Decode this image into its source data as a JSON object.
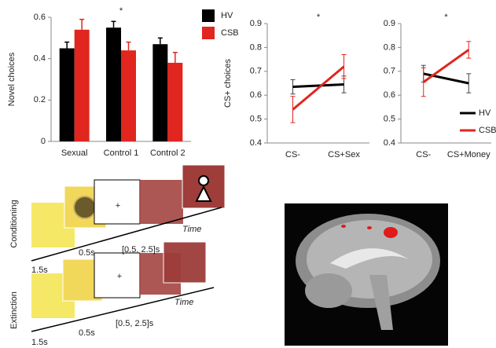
{
  "chart_data": [
    {
      "type": "bar",
      "ylabel": "Novel choices",
      "annotation": "*",
      "categories": [
        "Sexual",
        "Control 1",
        "Control 2"
      ],
      "series": [
        {
          "name": "HV",
          "color": "#000000",
          "values": [
            0.45,
            0.55,
            0.47
          ],
          "errors": [
            0.03,
            0.03,
            0.03
          ]
        },
        {
          "name": "CSB",
          "color": "#e0261e",
          "values": [
            0.54,
            0.44,
            0.38
          ],
          "errors": [
            0.05,
            0.04,
            0.05
          ]
        }
      ],
      "ylim": [
        0,
        0.6
      ],
      "yticks": [
        0,
        0.2,
        0.4,
        0.6
      ],
      "legend": "right"
    },
    {
      "type": "line",
      "ylabel": "CS+ choices",
      "annotation": "*",
      "categories": [
        "CS-",
        "CS+Sex"
      ],
      "series": [
        {
          "color": "#000000",
          "values": [
            0.635,
            0.645
          ],
          "errors": [
            0.03,
            0.035
          ]
        },
        {
          "color": "#e0261e",
          "values": [
            0.54,
            0.72
          ],
          "errors": [
            0.055,
            0.05
          ]
        }
      ],
      "ylim": [
        0.4,
        0.9
      ],
      "yticks": [
        0.4,
        0.5,
        0.6,
        0.7,
        0.8,
        0.9
      ]
    },
    {
      "type": "line",
      "annotation": "*",
      "categories": [
        "CS-",
        "CS+Money"
      ],
      "series": [
        {
          "name": "HV",
          "color": "#000000",
          "values": [
            0.69,
            0.65
          ],
          "errors": [
            0.035,
            0.04
          ]
        },
        {
          "name": "CSB",
          "color": "#e0261e",
          "values": [
            0.655,
            0.79
          ],
          "errors": [
            0.06,
            0.035
          ]
        }
      ],
      "ylim": [
        0.4,
        0.9
      ],
      "yticks": [
        0.4,
        0.5,
        0.6,
        0.7,
        0.8,
        0.9
      ],
      "legend": "lower right"
    }
  ],
  "diagram": {
    "rows": [
      {
        "label": "Conditioning",
        "timings": [
          "1.5s",
          "0.5s",
          "[0.5, 2.5]s"
        ],
        "fixation": "+",
        "axis_label": "Time"
      },
      {
        "label": "Extinction",
        "timings": [
          "1.5s",
          "0.5s",
          "[0.5, 2.5]s"
        ],
        "fixation": "+",
        "axis_label": "Time"
      }
    ]
  }
}
